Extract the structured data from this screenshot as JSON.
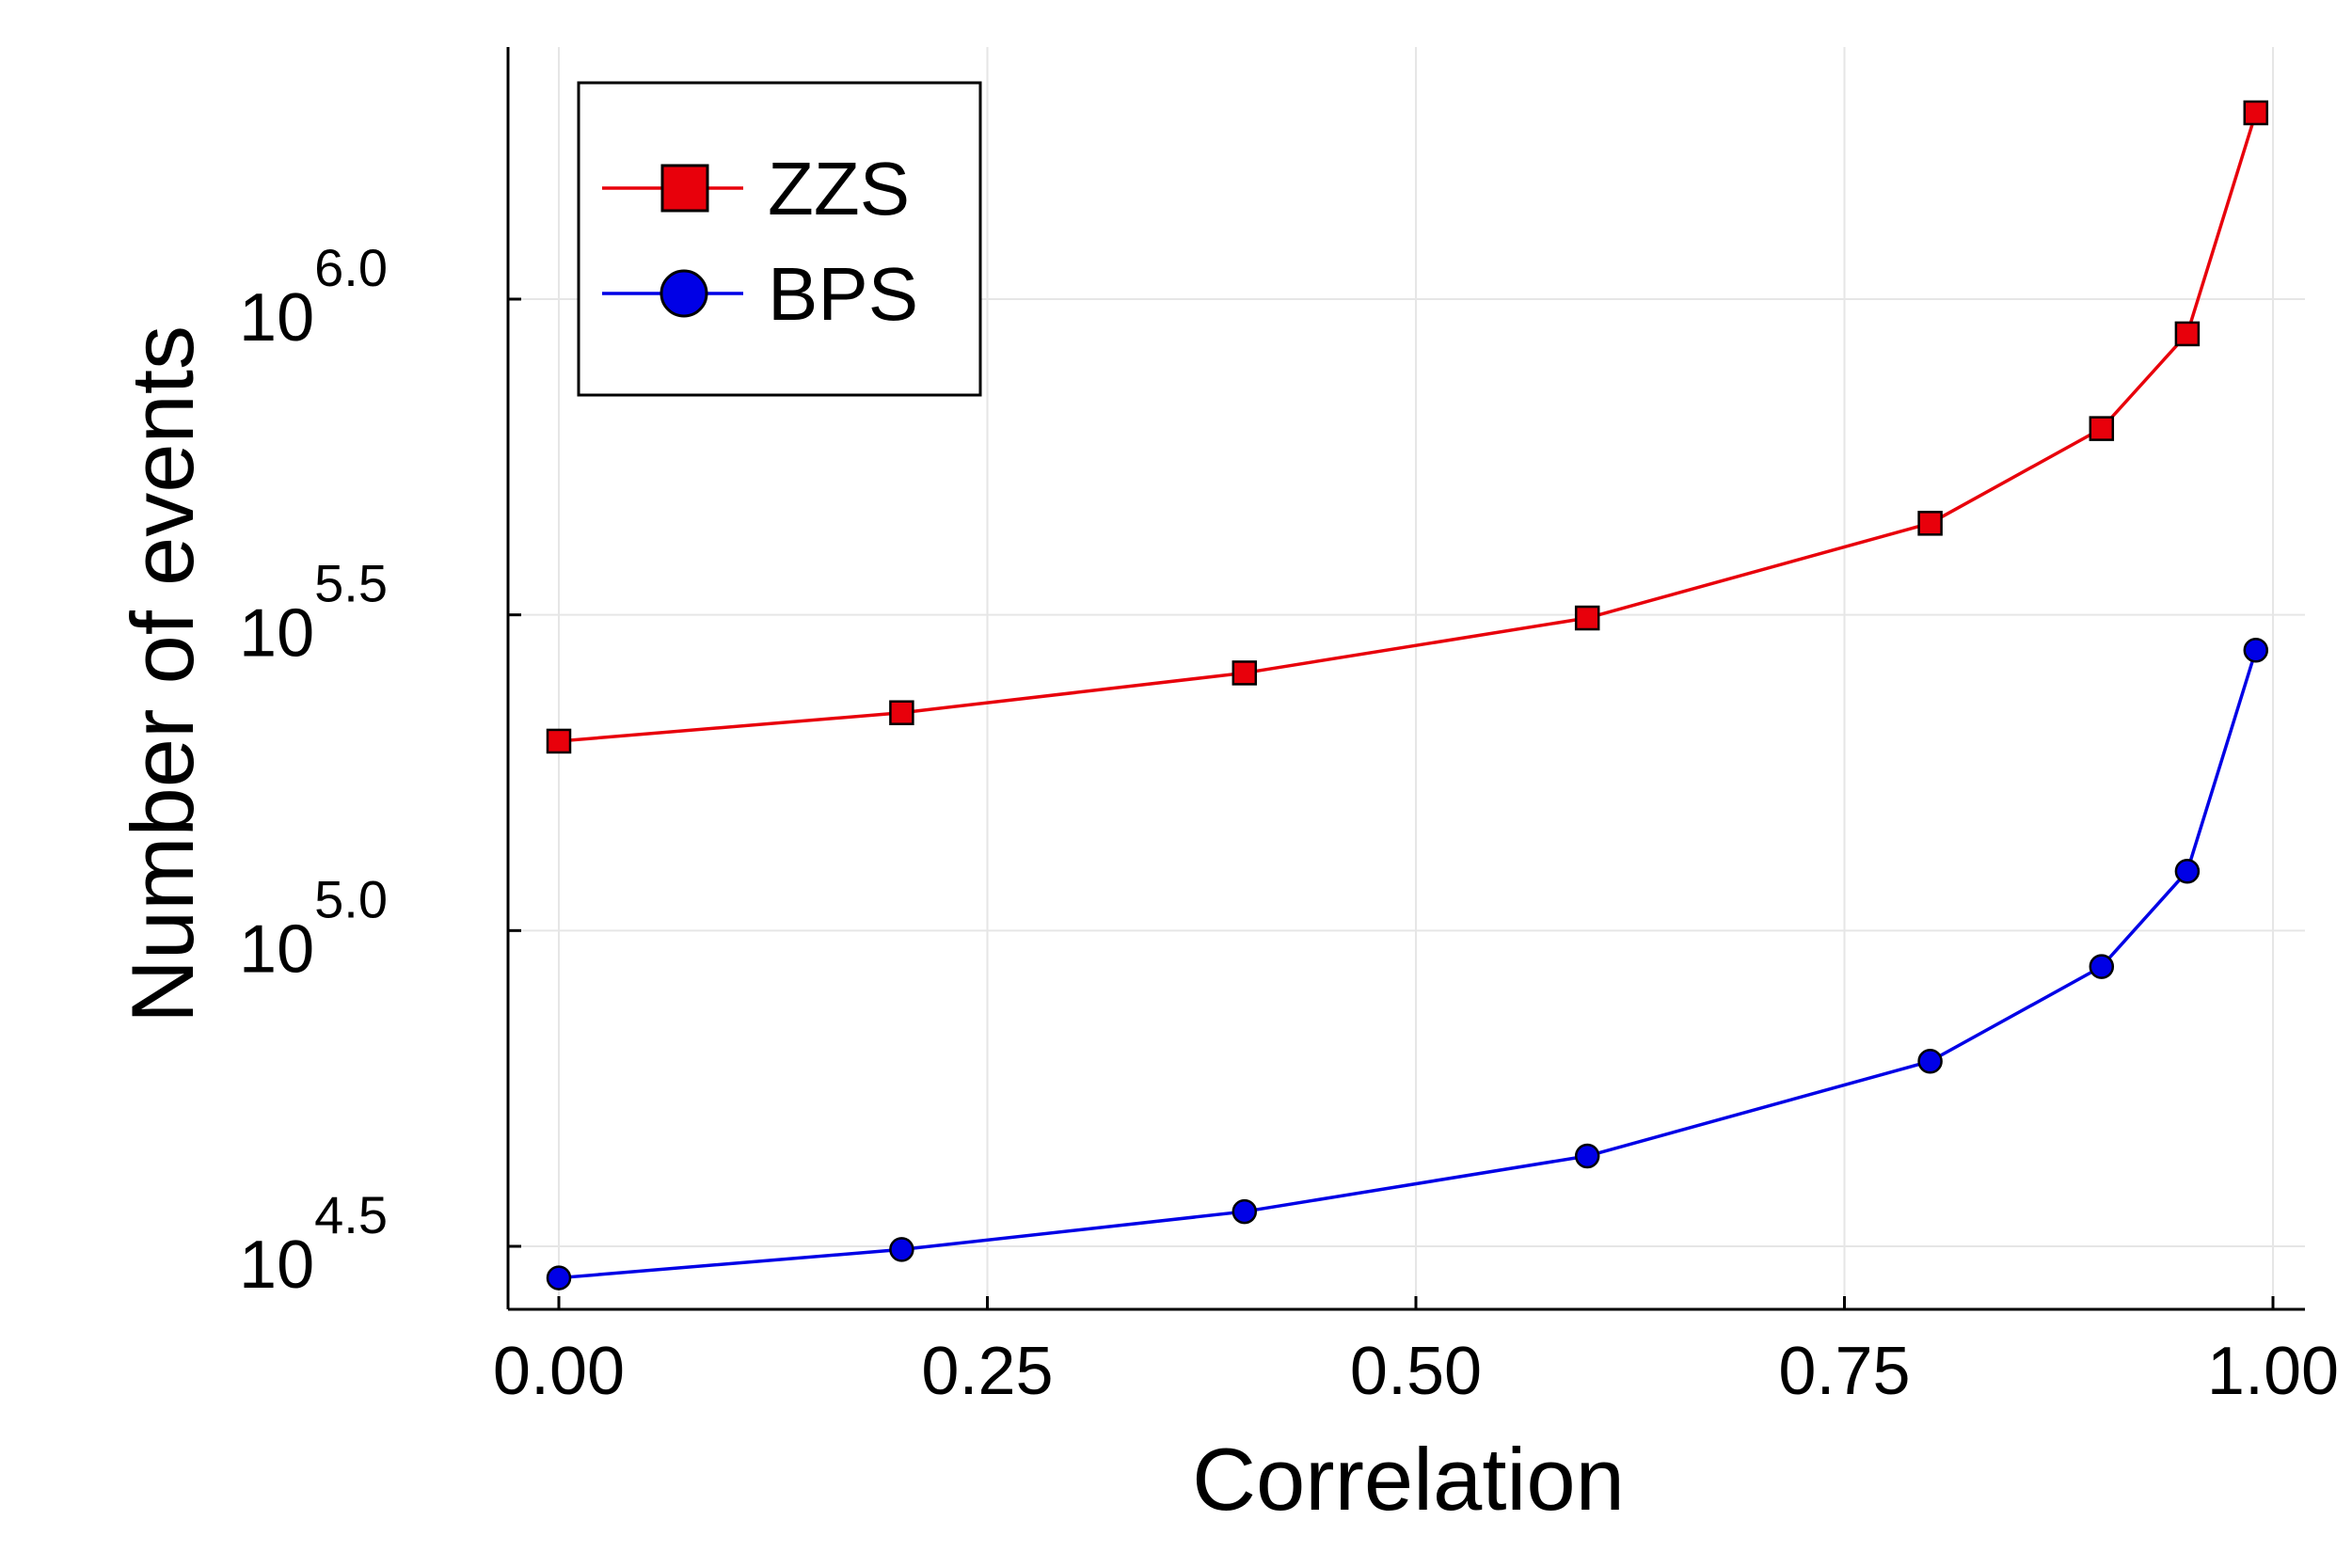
{
  "chart_data": {
    "type": "line",
    "xlabel": "Correlation",
    "ylabel": "Number of events",
    "xlim": [
      -0.03,
      1.02
    ],
    "ylim_log10": [
      4.4,
      6.4
    ],
    "yscale": "log10",
    "grid": true,
    "legend_position": "top-left",
    "x_ticks": [
      {
        "value": 0.0,
        "label": "0.00"
      },
      {
        "value": 0.25,
        "label": "0.25"
      },
      {
        "value": 0.5,
        "label": "0.50"
      },
      {
        "value": 0.75,
        "label": "0.75"
      },
      {
        "value": 1.0,
        "label": "1.00"
      }
    ],
    "y_ticks": [
      {
        "log10": 4.5,
        "base": "10",
        "exponent": "4.5"
      },
      {
        "log10": 5.0,
        "base": "10",
        "exponent": "5.0"
      },
      {
        "log10": 5.5,
        "base": "10",
        "exponent": "5.5"
      },
      {
        "log10": 6.0,
        "base": "10",
        "exponent": "6.0"
      }
    ],
    "x": [
      0.0,
      0.2,
      0.4,
      0.6,
      0.8,
      0.9,
      0.95,
      0.99
    ],
    "series": [
      {
        "name": "ZZS",
        "color": "#e8000b",
        "marker": "square",
        "log10_values": [
          5.3,
          5.345,
          5.408,
          5.495,
          5.645,
          5.795,
          5.945,
          6.295
        ]
      },
      {
        "name": "BPS",
        "color": "#0000e6",
        "marker": "circle",
        "log10_values": [
          4.45,
          4.495,
          4.555,
          4.643,
          4.793,
          4.943,
          5.094,
          5.444
        ]
      }
    ]
  }
}
